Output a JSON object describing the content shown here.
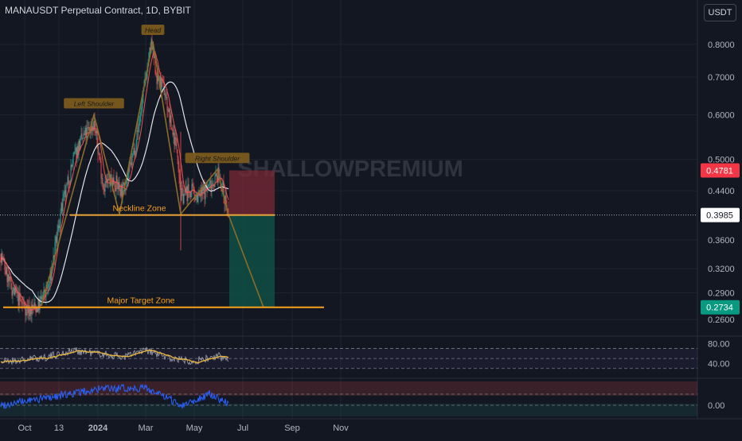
{
  "header": {
    "symbol_title": "MANAUSDT Perpetual Contract, 1D, BYBIT",
    "currency_label": "USDT"
  },
  "watermark": "SHALLOWPREMIUM",
  "colors": {
    "background": "#131722",
    "up_candle": "#26a69a",
    "down_candle": "#ef5350",
    "pattern_line": "#8b6c2a",
    "zone_line": "#f7a21b",
    "ma_fast": "#ef5350",
    "ma_slow": "#e0e3eb",
    "rsi_line": "#9598a1",
    "rsi_ma": "#e6b33c",
    "osc_line": "#2962ff",
    "stop_zone": "#7a2a36",
    "target_zone": "#0f4d44",
    "last_price_bg": "#ffffff",
    "stop_price_bg": "#f23645",
    "target_price_bg": "#089981"
  },
  "chart_data": [
    {
      "type": "candlestick",
      "title": "MANAUSDT Perpetual Contract, 1D, BYBIT",
      "y_axis": {
        "scale": "log",
        "range": [
          0.247,
          0.87
        ],
        "ticks": [
          "0.8000",
          "0.7000",
          "0.6000",
          "0.5000",
          "0.4400",
          "0.3600",
          "0.3200",
          "0.2900",
          "0.2600"
        ]
      },
      "x_axis": {
        "ticks": [
          "Oct",
          "13",
          "2024",
          "Mar",
          "May",
          "Jul",
          "Sep",
          "Nov"
        ]
      },
      "price_labels": {
        "last": "0.3985",
        "stop": "0.4781",
        "target": "0.2734"
      },
      "pattern_labels": [
        "Left Shoulder",
        "Head",
        "Right Shoulder"
      ],
      "zones": [
        {
          "label": "Neckline Zone",
          "price": 0.3985
        },
        {
          "label": "Major Target Zone",
          "price": 0.2734
        }
      ],
      "path_points": [
        [
          "2023-09-01",
          0.34
        ],
        [
          "2023-09-12",
          0.3
        ],
        [
          "2023-09-25",
          0.28
        ],
        [
          "2023-10-06",
          0.27
        ],
        [
          "2023-10-18",
          0.275
        ],
        [
          "2023-11-01",
          0.3
        ],
        [
          "2023-11-15",
          0.4
        ],
        [
          "2023-11-22",
          0.44
        ],
        [
          "2023-12-01",
          0.5
        ],
        [
          "2023-12-08",
          0.53
        ],
        [
          "2023-12-15",
          0.55
        ],
        [
          "2023-12-27",
          0.58
        ],
        [
          "2024-01-08",
          0.45
        ],
        [
          "2024-01-20",
          0.46
        ],
        [
          "2024-02-01",
          0.44
        ],
        [
          "2024-02-10",
          0.48
        ],
        [
          "2024-02-20",
          0.56
        ],
        [
          "2024-03-01",
          0.7
        ],
        [
          "2024-03-08",
          0.8
        ],
        [
          "2024-03-15",
          0.7
        ],
        [
          "2024-03-25",
          0.66
        ],
        [
          "2024-04-01",
          0.58
        ],
        [
          "2024-04-10",
          0.52
        ],
        [
          "2024-04-14",
          0.43
        ],
        [
          "2024-04-25",
          0.44
        ],
        [
          "2024-05-07",
          0.43
        ],
        [
          "2024-05-20",
          0.45
        ],
        [
          "2024-06-01",
          0.47
        ],
        [
          "2024-06-08",
          0.43
        ],
        [
          "2024-06-13",
          0.3985
        ]
      ],
      "trade_setup": {
        "entry": 0.3985,
        "stop": 0.4781,
        "target": 0.2734,
        "projection_end": [
          "2024-07-27",
          0.2734
        ]
      }
    },
    {
      "type": "line",
      "title": "",
      "y_axis": {
        "ticks": [
          "80.00",
          "40.00"
        ]
      },
      "band": [
        40,
        60
      ],
      "path_points": [
        [
          "2023-09-01",
          44
        ],
        [
          "2023-10-01",
          47
        ],
        [
          "2023-11-01",
          54
        ],
        [
          "2023-12-01",
          66
        ],
        [
          "2024-01-01",
          60
        ],
        [
          "2024-02-01",
          53
        ],
        [
          "2024-03-01",
          66
        ],
        [
          "2024-04-01",
          50
        ],
        [
          "2024-05-01",
          45
        ],
        [
          "2024-06-01",
          54
        ],
        [
          "2024-06-13",
          46
        ]
      ]
    },
    {
      "type": "line",
      "title": "",
      "y_axis": {
        "ticks": [
          "0.00"
        ]
      },
      "path_points": [
        [
          "2023-09-01",
          0.0
        ],
        [
          "2023-11-01",
          0.05
        ],
        [
          "2024-01-01",
          0.1
        ],
        [
          "2024-03-01",
          0.11
        ],
        [
          "2024-04-15",
          0.0
        ],
        [
          "2024-05-20",
          0.07
        ],
        [
          "2024-06-13",
          0.01
        ]
      ]
    }
  ]
}
